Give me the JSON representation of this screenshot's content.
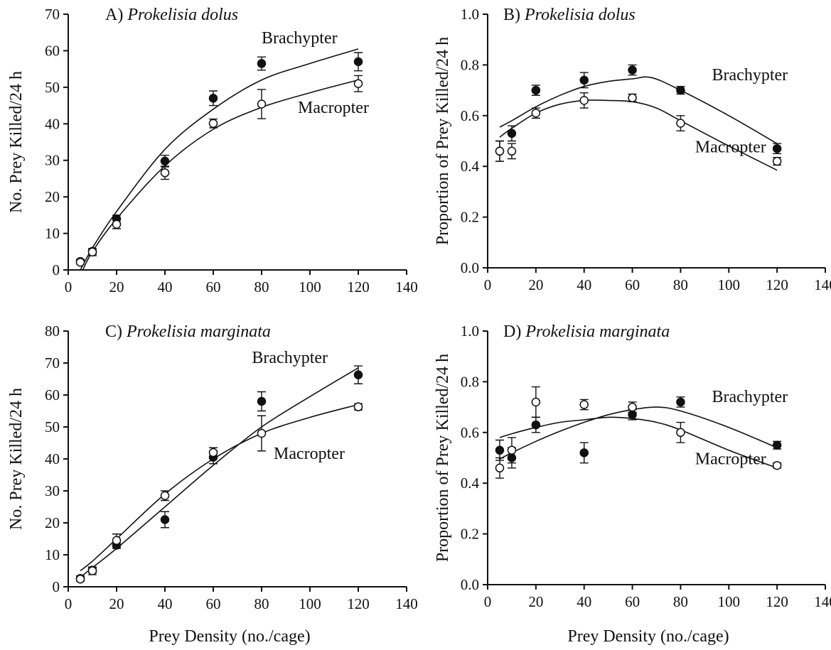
{
  "figure": {
    "xlabel": "Prey Density (no./cage)"
  },
  "chart_data": [
    {
      "type": "scatter",
      "panel": "A",
      "title_prefix": "A)",
      "title_species": "Prokelisia dolus",
      "xlabel": "",
      "ylabel": "No. Prey Killed/24 h",
      "xlim": [
        0,
        140
      ],
      "ylim": [
        0,
        70
      ],
      "xticks": [
        0,
        20,
        40,
        60,
        80,
        100,
        120,
        140
      ],
      "yticks": [
        0,
        10,
        20,
        30,
        40,
        50,
        60,
        70
      ],
      "ytick_decimals": 0,
      "series": [
        {
          "name": "Brachypter",
          "marker": "filled",
          "x": [
            5,
            10,
            20,
            40,
            60,
            80,
            120
          ],
          "y": [
            2.3,
            5.1,
            14.0,
            29.8,
            47.0,
            56.5,
            57.0
          ],
          "err": [
            0.6,
            0.8,
            1.0,
            1.6,
            2.0,
            1.8,
            2.5
          ],
          "label_at": [
            80,
            62
          ],
          "fit": [
            [
              5,
              0
            ],
            [
              10,
              6
            ],
            [
              20,
              16
            ],
            [
              40,
              33
            ],
            [
              60,
              44
            ],
            [
              80,
              52
            ],
            [
              100,
              56.5
            ],
            [
              120,
              60.5
            ]
          ]
        },
        {
          "name": "Macropter",
          "marker": "open",
          "x": [
            5,
            10,
            20,
            40,
            60,
            80,
            120
          ],
          "y": [
            2.1,
            4.9,
            12.5,
            26.6,
            40.1,
            45.4,
            51.0
          ],
          "err": [
            0.5,
            1.0,
            1.2,
            1.8,
            1.2,
            4.0,
            2.2
          ],
          "label_at": [
            95,
            43
          ],
          "fit": [
            [
              6,
              0
            ],
            [
              10,
              5
            ],
            [
              20,
              14
            ],
            [
              40,
              28.5
            ],
            [
              60,
              38.5
            ],
            [
              80,
              44.5
            ],
            [
              100,
              48.5
            ],
            [
              120,
              52
            ]
          ]
        }
      ]
    },
    {
      "type": "scatter",
      "panel": "B",
      "title_prefix": "B)",
      "title_species": "Prokelisia dolus",
      "xlabel": "",
      "ylabel": "Proportion of Prey Killed/24 h",
      "xlim": [
        0,
        140
      ],
      "ylim": [
        0,
        1
      ],
      "xticks": [
        0,
        20,
        40,
        60,
        80,
        100,
        120,
        140
      ],
      "yticks": [
        0.0,
        0.2,
        0.4,
        0.6,
        0.8,
        1.0
      ],
      "ytick_decimals": 1,
      "series": [
        {
          "name": "Brachypter",
          "marker": "filled",
          "x": [
            5,
            10,
            20,
            40,
            60,
            80,
            120
          ],
          "y": [
            0.46,
            0.53,
            0.7,
            0.74,
            0.78,
            0.7,
            0.47
          ],
          "err": [
            0.04,
            0.03,
            0.02,
            0.03,
            0.02,
            0.015,
            0.02
          ],
          "label_at": [
            93,
            0.74
          ],
          "fit": [
            [
              5,
              0.555
            ],
            [
              10,
              0.58
            ],
            [
              20,
              0.635
            ],
            [
              30,
              0.68
            ],
            [
              40,
              0.715
            ],
            [
              50,
              0.735
            ],
            [
              60,
              0.745
            ],
            [
              68,
              0.75
            ],
            [
              80,
              0.7
            ],
            [
              100,
              0.6
            ],
            [
              120,
              0.49
            ]
          ]
        },
        {
          "name": "Macropter",
          "marker": "open",
          "x": [
            5,
            10,
            20,
            40,
            60,
            80,
            120
          ],
          "y": [
            0.46,
            0.46,
            0.61,
            0.66,
            0.67,
            0.57,
            0.42
          ],
          "err": [
            0.04,
            0.03,
            0.02,
            0.03,
            0.015,
            0.03,
            0.015
          ],
          "label_at": [
            86,
            0.455
          ],
          "fit": [
            [
              5,
              0.515
            ],
            [
              10,
              0.55
            ],
            [
              20,
              0.61
            ],
            [
              30,
              0.645
            ],
            [
              40,
              0.66
            ],
            [
              50,
              0.66
            ],
            [
              60,
              0.655
            ],
            [
              70,
              0.63
            ],
            [
              80,
              0.58
            ],
            [
              100,
              0.48
            ],
            [
              120,
              0.385
            ]
          ]
        }
      ]
    },
    {
      "type": "scatter",
      "panel": "C",
      "title_prefix": "C)",
      "title_species": "Prokelisia marginata",
      "xlabel": "",
      "ylabel": "No. Prey Killed/24 h",
      "xlim": [
        0,
        140
      ],
      "ylim": [
        0,
        80
      ],
      "xticks": [
        0,
        20,
        40,
        60,
        80,
        100,
        120,
        140
      ],
      "yticks": [
        0,
        10,
        20,
        30,
        40,
        50,
        60,
        70,
        80
      ],
      "ytick_decimals": 0,
      "series": [
        {
          "name": "Brachypter",
          "marker": "filled",
          "x": [
            5,
            10,
            20,
            40,
            60,
            80,
            120
          ],
          "y": [
            2.6,
            5.2,
            13.0,
            21.0,
            40.5,
            58.0,
            66.3
          ],
          "err": [
            0.8,
            0.8,
            1.0,
            2.5,
            2.0,
            3.0,
            2.8
          ],
          "label_at": [
            76,
            70
          ],
          "fit": [
            [
              5,
              3
            ],
            [
              10,
              6
            ],
            [
              20,
              12
            ],
            [
              40,
              25
            ],
            [
              60,
              38
            ],
            [
              80,
              50
            ],
            [
              100,
              59.5
            ],
            [
              120,
              68.5
            ]
          ]
        },
        {
          "name": "Macropter",
          "marker": "open",
          "x": [
            5,
            10,
            20,
            40,
            60,
            80,
            120
          ],
          "y": [
            2.4,
            5.0,
            14.5,
            28.5,
            42.0,
            48.0,
            56.3
          ],
          "err": [
            0.6,
            1.2,
            2.0,
            1.5,
            1.5,
            5.5,
            1.0
          ],
          "label_at": [
            85,
            40
          ],
          "fit": [
            [
              5,
              5
            ],
            [
              10,
              8
            ],
            [
              20,
              15
            ],
            [
              40,
              29
            ],
            [
              60,
              40
            ],
            [
              80,
              48
            ],
            [
              100,
              53
            ],
            [
              120,
              57
            ]
          ]
        }
      ]
    },
    {
      "type": "scatter",
      "panel": "D",
      "title_prefix": "D)",
      "title_species": "Prokelisia marginata",
      "xlabel": "",
      "ylabel": "Proportion of Prey Killed/24 h",
      "xlim": [
        0,
        140
      ],
      "ylim": [
        0,
        1
      ],
      "xticks": [
        0,
        20,
        40,
        60,
        80,
        100,
        120,
        140
      ],
      "yticks": [
        0.0,
        0.2,
        0.4,
        0.6,
        0.8,
        1.0
      ],
      "ytick_decimals": 1,
      "series": [
        {
          "name": "Brachypter",
          "marker": "filled",
          "x": [
            5,
            10,
            20,
            40,
            60,
            80,
            120
          ],
          "y": [
            0.53,
            0.5,
            0.63,
            0.52,
            0.67,
            0.72,
            0.55
          ],
          "err": [
            0.04,
            0.04,
            0.03,
            0.04,
            0.02,
            0.02,
            0.015
          ],
          "label_at": [
            93,
            0.72
          ],
          "fit": [
            [
              5,
              0.495
            ],
            [
              10,
              0.52
            ],
            [
              20,
              0.565
            ],
            [
              30,
              0.605
            ],
            [
              40,
              0.64
            ],
            [
              50,
              0.67
            ],
            [
              60,
              0.69
            ],
            [
              70,
              0.7
            ],
            [
              80,
              0.685
            ],
            [
              100,
              0.62
            ],
            [
              120,
              0.54
            ]
          ]
        },
        {
          "name": "Macropter",
          "marker": "open",
          "x": [
            5,
            10,
            20,
            40,
            60,
            80,
            120
          ],
          "y": [
            0.46,
            0.53,
            0.72,
            0.71,
            0.7,
            0.6,
            0.47
          ],
          "err": [
            0.04,
            0.05,
            0.06,
            0.02,
            0.02,
            0.04,
            0.01
          ],
          "label_at": [
            86,
            0.475
          ],
          "fit": [
            [
              5,
              0.58
            ],
            [
              10,
              0.595
            ],
            [
              20,
              0.62
            ],
            [
              30,
              0.64
            ],
            [
              40,
              0.65
            ],
            [
              50,
              0.66
            ],
            [
              60,
              0.655
            ],
            [
              70,
              0.64
            ],
            [
              80,
              0.61
            ],
            [
              100,
              0.53
            ],
            [
              120,
              0.46
            ]
          ]
        }
      ]
    }
  ]
}
